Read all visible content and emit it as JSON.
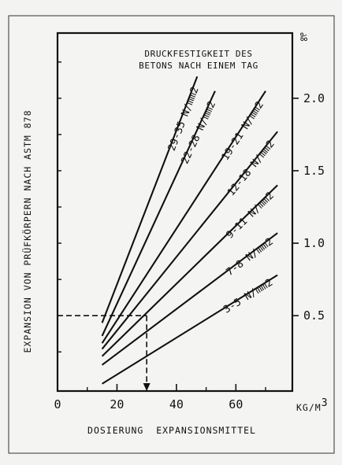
{
  "chart_data": {
    "type": "line",
    "legend_title_lines": [
      "DRUCKFESTIGKEIT DES",
      "BETONS NACH EINEM TAG"
    ],
    "xlabel": "DOSIERUNG  EXPANSIONSMITTEL",
    "xunit": "KG/M",
    "xunit_sup": "3",
    "ylabel": "EXPANSION VON PRÜFKÖRPERN NACH ASTM 878",
    "yunit": "‰",
    "xlim": [
      0,
      79
    ],
    "ylim": [
      -0.02,
      2.45
    ],
    "x_ticks": [
      0,
      20,
      40,
      60
    ],
    "x_tick_labels": [
      "0",
      "20",
      "40",
      "60"
    ],
    "y_ticks": [
      0.5,
      1.0,
      1.5,
      2.0
    ],
    "y_tick_labels": [
      "0.5",
      "1.0",
      "1.5",
      "2.0"
    ],
    "x_minor_ticks": [
      10,
      30,
      50,
      70
    ],
    "y_minor_ticks": [
      0.25,
      0.75,
      1.25,
      1.75,
      2.25
    ],
    "series": [
      {
        "name": "29-35 N/mm2",
        "x": [
          15,
          47
        ],
        "y": [
          0.45,
          2.15
        ]
      },
      {
        "name": "22-28 N/mm2",
        "x": [
          15,
          53
        ],
        "y": [
          0.36,
          2.05
        ]
      },
      {
        "name": "19-21 N/mm2",
        "x": [
          15,
          70
        ],
        "y": [
          0.31,
          2.05
        ]
      },
      {
        "name": "12-18 N/mm2",
        "x": [
          15,
          74
        ],
        "y": [
          0.27,
          1.77
        ]
      },
      {
        "name": "9-11 N/mm2",
        "x": [
          15,
          74
        ],
        "y": [
          0.22,
          1.4
        ]
      },
      {
        "name": "7-8 N/mm2",
        "x": [
          15,
          74
        ],
        "y": [
          0.16,
          1.07
        ]
      },
      {
        "name": "3-5 N/mm2",
        "x": [
          15,
          74
        ],
        "y": [
          0.03,
          0.78
        ]
      }
    ],
    "reference": {
      "x": 30,
      "y": 0.5
    },
    "grid": false
  }
}
